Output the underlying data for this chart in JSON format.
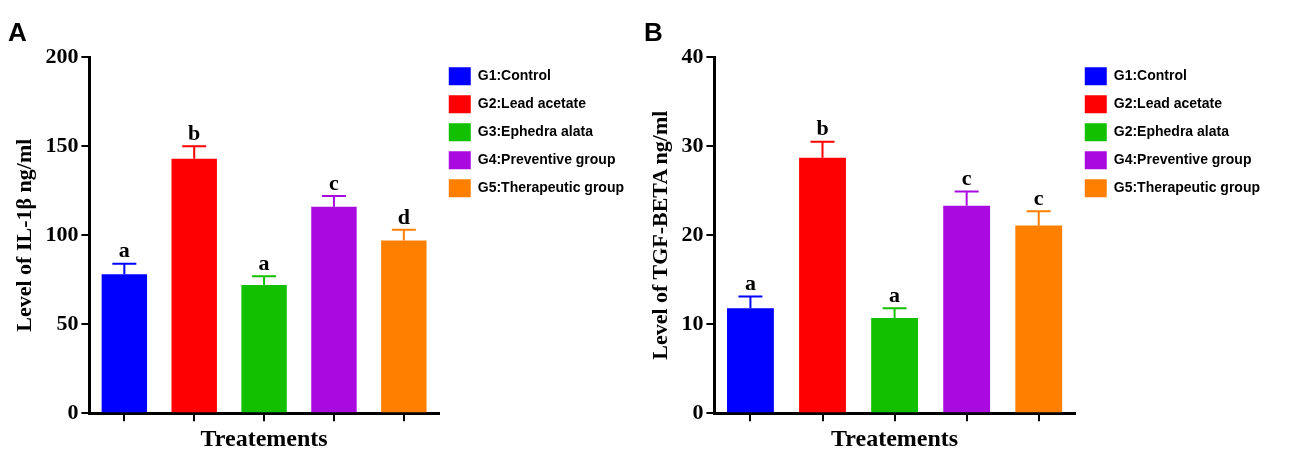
{
  "chart_data": [
    {
      "type": "bar",
      "title": "A",
      "xlabel": "Treatements",
      "ylabel": "Level of IL-1β ng/ml",
      "categories": [
        null,
        null,
        null,
        null,
        null
      ],
      "tick_labels": "y",
      "ylim": [
        0,
        200
      ],
      "yticks": [
        0,
        50,
        100,
        150,
        200
      ],
      "legend": "top right",
      "series": [
        {
          "name": "G1:Control",
          "color": "#0000ff",
          "values": [
            78,
            null,
            null,
            null,
            null
          ],
          "errors": [
            [
              78,
              84
            ],
            null,
            null,
            null,
            null
          ],
          "value_labels": [
            "a",
            null,
            null,
            null,
            null
          ]
        },
        {
          "name": "G2:Lead acetate",
          "color": "#ff0000",
          "values": [
            null,
            143,
            null,
            null,
            null
          ],
          "errors": [
            null,
            [
              143,
              150
            ],
            null,
            null,
            null
          ],
          "value_labels": [
            null,
            "b",
            null,
            null,
            null
          ]
        },
        {
          "name": "G3:Ephedra alata",
          "color": "#12c000",
          "values": [
            null,
            null,
            72,
            null,
            null
          ],
          "errors": [
            null,
            null,
            [
              72,
              77
            ],
            null,
            null
          ],
          "value_labels": [
            null,
            null,
            "a",
            null,
            null
          ]
        },
        {
          "name": "G4:Preventive group",
          "color": "#a90ae0",
          "values": [
            null,
            null,
            null,
            116,
            null
          ],
          "errors": [
            null,
            null,
            null,
            [
              116,
              122
            ],
            null
          ],
          "value_labels": [
            null,
            null,
            null,
            "c",
            null
          ]
        },
        {
          "name": "G5:Therapeutic group",
          "color": "#ff8000",
          "values": [
            null,
            null,
            null,
            null,
            97
          ],
          "errors": [
            null,
            null,
            null,
            null,
            [
              97,
              103
            ]
          ],
          "value_labels": [
            null,
            null,
            null,
            null,
            "d"
          ]
        }
      ]
    },
    {
      "type": "bar",
      "title": "B",
      "xlabel": "Treatements",
      "ylabel": "Level of TGF-BETA ng/ml",
      "categories": [
        null,
        null,
        null,
        null,
        null
      ],
      "tick_labels": "y",
      "ylim": [
        0,
        40
      ],
      "yticks": [
        0,
        10,
        20,
        30,
        40
      ],
      "legend": "top right",
      "series": [
        {
          "name": "G1:Control",
          "color": "#0000ff",
          "values": [
            11.8,
            null,
            null,
            null,
            null
          ],
          "errors": [
            [
              11.8,
              13.1
            ],
            null,
            null,
            null,
            null
          ],
          "value_labels": [
            "a",
            null,
            null,
            null,
            null
          ]
        },
        {
          "name": "G2:Lead acetate",
          "color": "#ff0000",
          "values": [
            null,
            28.7,
            null,
            null,
            null
          ],
          "errors": [
            null,
            [
              28.7,
              30.5
            ],
            null,
            null,
            null
          ],
          "value_labels": [
            null,
            "b",
            null,
            null,
            null
          ]
        },
        {
          "name": "G2:Ephedra alata",
          "color": "#12c000",
          "values": [
            null,
            null,
            10.7,
            null,
            null
          ],
          "errors": [
            null,
            null,
            [
              10.7,
              11.8
            ],
            null,
            null
          ],
          "value_labels": [
            null,
            null,
            "a",
            null,
            null
          ]
        },
        {
          "name": "G4:Preventive group",
          "color": "#a90ae0",
          "values": [
            null,
            null,
            null,
            23.3,
            null
          ],
          "errors": [
            null,
            null,
            null,
            [
              23.3,
              24.9
            ],
            null
          ],
          "value_labels": [
            null,
            null,
            null,
            "c",
            null
          ]
        },
        {
          "name": "G5:Therapeutic group",
          "color": "#ff8000",
          "values": [
            null,
            null,
            null,
            null,
            21.1
          ],
          "errors": [
            null,
            null,
            null,
            null,
            [
              21.1,
              22.7
            ]
          ],
          "value_labels": [
            null,
            null,
            null,
            null,
            "c"
          ]
        }
      ]
    }
  ]
}
